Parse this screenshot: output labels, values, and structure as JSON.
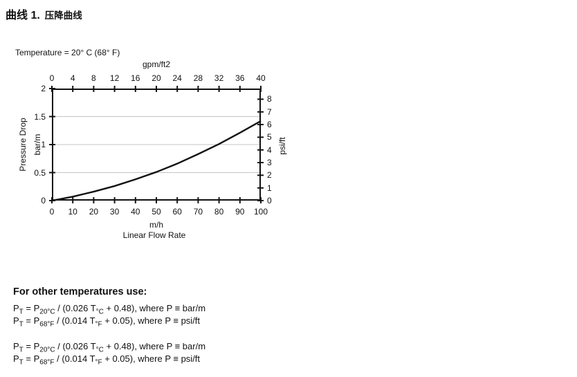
{
  "figure": {
    "label": "曲线 1.",
    "title": "压降曲线"
  },
  "chart": {
    "temperature_note": "Temperature = 20° C (68° F)",
    "top_axis": {
      "title": "gpm/ft2",
      "ticks": [
        "0",
        "4",
        "8",
        "12",
        "16",
        "20",
        "24",
        "28",
        "32",
        "36",
        "40"
      ]
    },
    "bottom_axis": {
      "unit": "m/h",
      "title": "Linear Flow Rate",
      "ticks": [
        "0",
        "10",
        "20",
        "30",
        "40",
        "50",
        "60",
        "70",
        "80",
        "90",
        "100"
      ]
    },
    "left_axis": {
      "title": "Pressure Drop",
      "unit": "bar/m",
      "ticks": [
        "0",
        "0.5",
        "1",
        "1.5",
        "2"
      ]
    },
    "right_axis": {
      "unit": "psi/ft",
      "ticks": [
        "0",
        "1",
        "2",
        "3",
        "4",
        "5",
        "6",
        "7",
        "8"
      ]
    },
    "colors": {
      "curve": "#111111",
      "grid": "#c4c4c4",
      "frame": "#111111"
    }
  },
  "chart_data": {
    "type": "line",
    "title": "压降曲线 (Pressure Drop Curve)",
    "subtitle": "Temperature = 20° C (68° F)",
    "x": [
      0,
      10,
      20,
      30,
      40,
      50,
      60,
      70,
      80,
      90,
      100
    ],
    "series": [
      {
        "name": "Pressure drop",
        "values": [
          0,
          0.07,
          0.16,
          0.26,
          0.38,
          0.51,
          0.66,
          0.83,
          1.01,
          1.21,
          1.42
        ]
      }
    ],
    "xlabel": "Linear Flow Rate (m/h)",
    "x2label": "gpm/ft2",
    "ylabel": "Pressure Drop (bar/m)",
    "y2label": "psi/ft",
    "xlim": [
      0,
      100
    ],
    "ylim": [
      0,
      2
    ],
    "x2lim": [
      0,
      40
    ],
    "y2_ticks_shown": [
      0,
      8
    ],
    "y2_conversion_bar_per_psi": 0.2262,
    "gridlines_y": [
      0.5,
      1.0,
      1.5
    ],
    "grid": "horizontal only",
    "legend": "none"
  },
  "notes": {
    "heading": "For other temperatures use:",
    "formulas": [
      {
        "parts": [
          {
            "t": "P"
          },
          {
            "s": "T"
          },
          {
            "t": " = P"
          },
          {
            "s": "20°C"
          },
          {
            "t": " / (0.026 T"
          },
          {
            "s": "°C"
          },
          {
            "t": " + 0.48), where P ≡ bar/m"
          }
        ]
      },
      {
        "parts": [
          {
            "t": "P"
          },
          {
            "s": "T"
          },
          {
            "t": " = P"
          },
          {
            "s": "68°F"
          },
          {
            "t": " / (0.014 T"
          },
          {
            "s": "°F"
          },
          {
            "t": " + 0.05), where P ≡ psi/ft"
          }
        ]
      }
    ]
  }
}
